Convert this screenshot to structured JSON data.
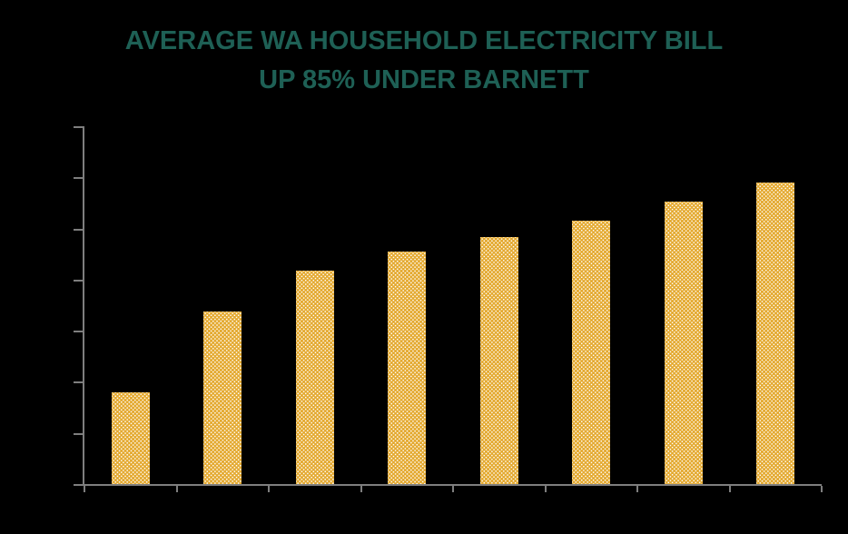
{
  "title": {
    "line1": "AVERAGE WA HOUSEHOLD ELECTRICITY BILL",
    "line2": "UP 85% UNDER BARNETT"
  },
  "colors": {
    "background": "#000000",
    "title_text": "#1E6055",
    "bar_fill": "#E4AA32",
    "bar_dots": "#FFFFFF",
    "axis": "#7E7E7E"
  },
  "chart_data": {
    "type": "bar",
    "title": "AVERAGE WA HOUSEHOLD ELECTRICITY BILL UP 85% UNDER BARNETT",
    "categories": [
      "",
      "",
      "",
      "",
      "",
      "",
      "",
      ""
    ],
    "values": [
      1.8,
      3.38,
      4.17,
      4.55,
      4.83,
      5.15,
      5.52,
      5.9
    ],
    "value_units": "y-axis gridline divisions (axis tick labels not visible in image)",
    "xlabel": "",
    "ylabel": "",
    "ylim": [
      0,
      7
    ],
    "y_tick_count": 8,
    "x_tick_count": 9,
    "grid": false,
    "legend": false,
    "bar_pattern": "polka-dot"
  }
}
